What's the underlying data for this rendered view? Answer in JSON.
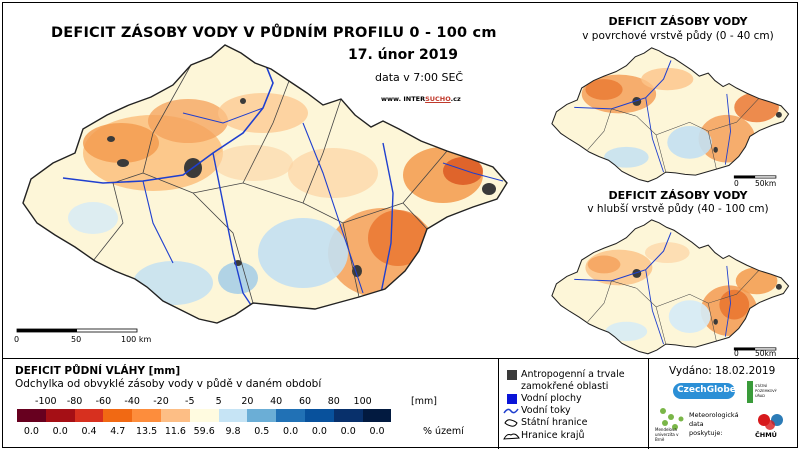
{
  "map": {
    "title": "DEFICIT ZÁSOBY VODY V PŮDNÍM PROFILU 0 - 100 cm",
    "date": "17. únor 2019",
    "time_note": "data v 7:00 SEČ",
    "url_prefix": "www. INTER",
    "url_highlight": "SUCHO",
    "url_suffix": ".cz",
    "scale_labels": [
      "0",
      "50",
      "100 km"
    ]
  },
  "submap_top": {
    "title": "DEFICIT ZÁSOBY VODY",
    "subtitle": "v povrchové vrstvě půdy (0 - 40 cm)",
    "scale_labels": [
      "0",
      "50km"
    ]
  },
  "submap_bottom": {
    "title": "DEFICIT ZÁSOBY VODY",
    "subtitle": "v hlubší vrstvě půdy (40 - 100 cm)",
    "scale_labels": [
      "0",
      "50km"
    ]
  },
  "legend": {
    "title": "DEFICIT PŮDNÍ VLÁHY [mm]",
    "subtitle": "Odchylka od obvyklé zásoby vody v půdě v daném období",
    "ticks": [
      "-100",
      "-80",
      "-60",
      "-40",
      "-20",
      "-5",
      "5",
      "20",
      "40",
      "60",
      "80",
      "100"
    ],
    "unit": "[mm]",
    "colors": [
      "#67001f",
      "#a50f15",
      "#d7301f",
      "#f16913",
      "#fd8d3c",
      "#fdbe85",
      "#fffbe0",
      "#c6e4f5",
      "#6baed6",
      "#2171b5",
      "#08519c",
      "#08306b",
      "#021a40"
    ],
    "percentages": [
      "0.0",
      "0.0",
      "0.4",
      "4.7",
      "13.5",
      "11.6",
      "59.6",
      "9.8",
      "0.5",
      "0.0",
      "0.0",
      "0.0",
      "0.0"
    ],
    "pct_label": "% území"
  },
  "map_legend": {
    "items": [
      {
        "label": "Antropogenní a trvale",
        "label2": "zamokřené oblasti",
        "color": "#3a3a3a"
      },
      {
        "label": "Vodní plochy",
        "color": "#0a14d8"
      },
      {
        "label": "Vodní toky"
      },
      {
        "label": "Státní hranice"
      },
      {
        "label": "Hranice krajů"
      }
    ]
  },
  "footer": {
    "issued": "Vydáno: 18.02.2019",
    "logo_czechglobe": "CzechGlobe",
    "logo_mendel": "Mendelova univerzita v Brně",
    "logo_sp_1": "STÁTNÍ",
    "logo_sp_2": "POZEMKOVÝ",
    "logo_sp_3": "ÚŘAD",
    "provider_1": "Meteorologická",
    "provider_2": "data",
    "provider_3": "poskytuje:",
    "logo_chmu": "ČHMÚ"
  }
}
